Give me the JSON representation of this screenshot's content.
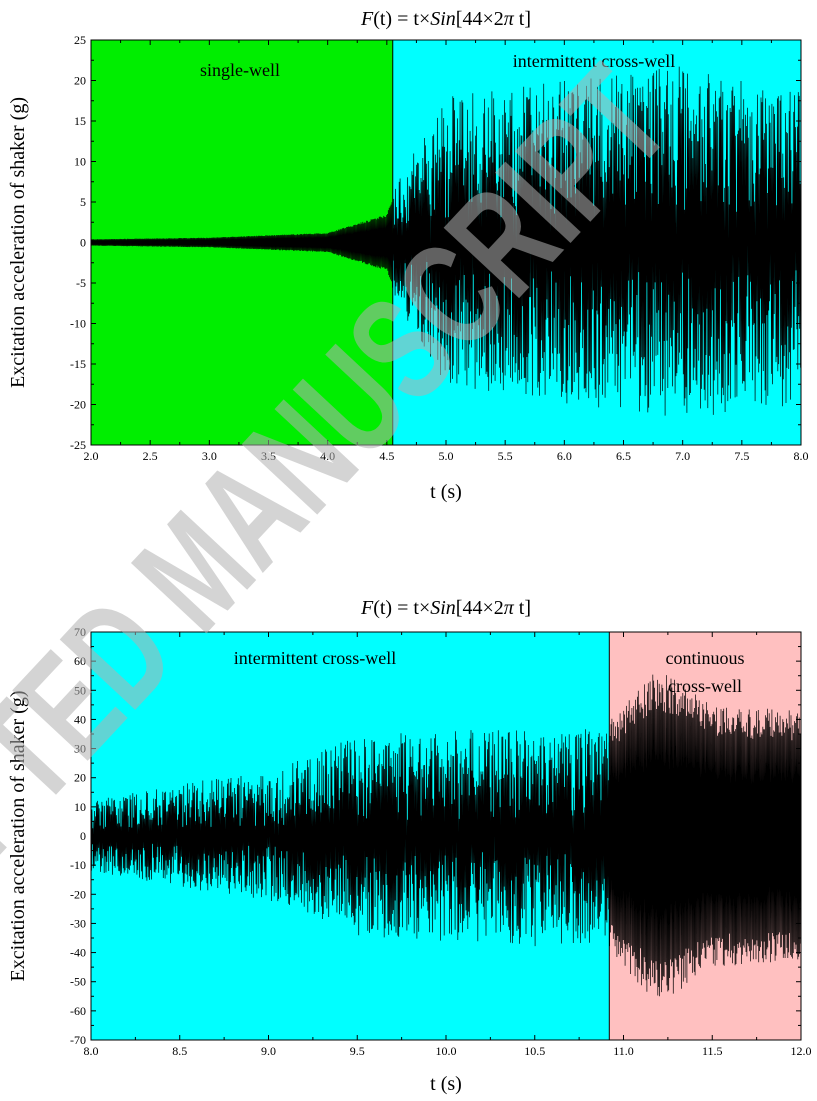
{
  "chart_data": [
    {
      "type": "line",
      "title": {
        "prefix": "F",
        "arg": "(t)",
        "mid": " = t×",
        "fn": "Sin",
        "bracket": "[44×2",
        "pi": "π",
        "end": " t]"
      },
      "xlabel": "t (s)",
      "ylabel": "Excitation acceleration of shaker (g)",
      "xlim": [
        2.0,
        8.0
      ],
      "ylim": [
        -25,
        25
      ],
      "xticks": [
        "2.0",
        "2.5",
        "3.0",
        "3.5",
        "4.0",
        "4.5",
        "5.0",
        "5.5",
        "6.0",
        "6.5",
        "7.0",
        "7.5",
        "8.0"
      ],
      "yticks": [
        "-25",
        "-20",
        "-15",
        "-10",
        "-5",
        "0",
        "5",
        "10",
        "15",
        "20",
        "25"
      ],
      "regions": [
        {
          "label": "single-well",
          "from": 2.0,
          "to": 4.55,
          "color": "#00ee00"
        },
        {
          "label": "intermittent cross-well",
          "from": 4.55,
          "to": 8.0,
          "color": "#00ffff"
        }
      ],
      "series": [
        {
          "color": "#000000",
          "description_points": [
            {
              "t": 2.0,
              "amp": 0.4
            },
            {
              "t": 3.0,
              "amp": 0.6
            },
            {
              "t": 4.0,
              "amp": 1.2
            },
            {
              "t": 4.5,
              "amp": 3.5
            },
            {
              "t": 4.6,
              "amp": 8
            },
            {
              "t": 5.0,
              "amp": 18
            },
            {
              "t": 6.0,
              "amp": 20
            },
            {
              "t": 7.0,
              "amp": 22
            },
            {
              "t": 8.0,
              "amp": 20
            }
          ]
        }
      ]
    },
    {
      "type": "line",
      "title": {
        "prefix": "F",
        "arg": "(t)",
        "mid": " = t×",
        "fn": "Sin",
        "bracket": "[44×2",
        "pi": "π",
        "end": " t]"
      },
      "xlabel": "t (s)",
      "ylabel": "Excitation acceleration of shaker (g)",
      "xlim": [
        8.0,
        12.0
      ],
      "ylim": [
        -70,
        70
      ],
      "xticks": [
        "8.0",
        "8.5",
        "9.0",
        "9.5",
        "10.0",
        "10.5",
        "11.0",
        "11.5",
        "12.0"
      ],
      "yticks": [
        "-70",
        "-60",
        "-50",
        "-40",
        "-30",
        "-20",
        "-10",
        "0",
        "10",
        "20",
        "30",
        "40",
        "50",
        "60",
        "70"
      ],
      "regions": [
        {
          "label": "intermittent cross-well",
          "from": 8.0,
          "to": 10.92,
          "color": "#00ffff"
        },
        {
          "label": "continuous cross-well",
          "from": 10.92,
          "to": 12.0,
          "color": "#ffc0c0"
        }
      ],
      "series": [
        {
          "color": "#000000",
          "description_points": [
            {
              "t": 8.0,
              "amp": 12
            },
            {
              "t": 8.5,
              "amp": 18
            },
            {
              "t": 9.0,
              "amp": 22
            },
            {
              "t": 9.5,
              "amp": 35
            },
            {
              "t": 10.0,
              "amp": 36
            },
            {
              "t": 10.5,
              "amp": 38
            },
            {
              "t": 10.9,
              "amp": 38
            },
            {
              "t": 11.0,
              "amp": 45
            },
            {
              "t": 11.2,
              "amp": 58
            },
            {
              "t": 11.5,
              "amp": 45
            },
            {
              "t": 12.0,
              "amp": 43
            }
          ]
        }
      ]
    }
  ],
  "watermark": {
    "text": "ACCEPTED MANUSCRIPT",
    "color": "#c8c8c8"
  }
}
